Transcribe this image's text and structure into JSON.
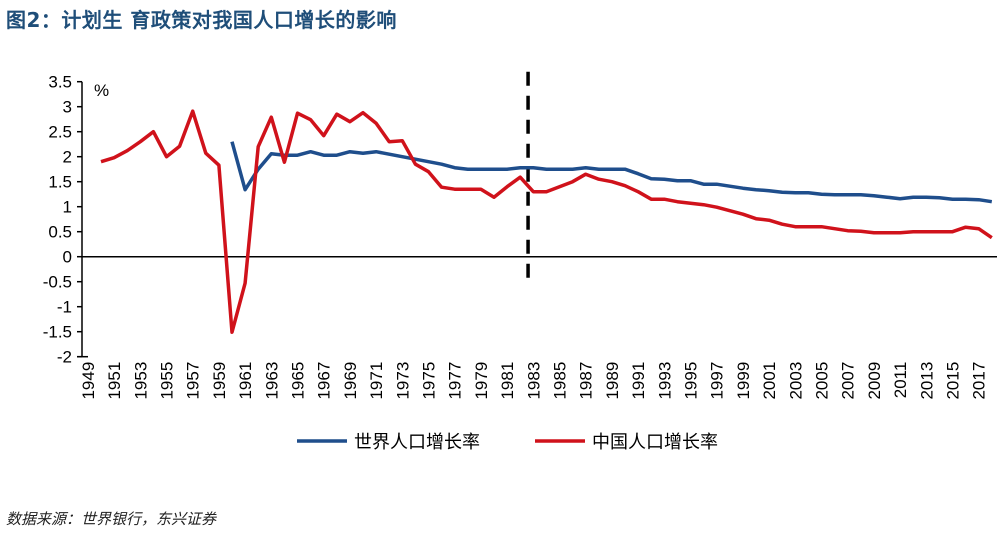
{
  "title": "图2：计划生 育政策对我国人口增长的影响",
  "source": "数据来源：世界银行，东兴证券",
  "chart_data": {
    "type": "line",
    "title": "图2：计划生 育政策对我国人口增长的影响",
    "ylabel": "%",
    "xlabel": "",
    "ylim": [
      -2,
      3.5
    ],
    "yticks": [
      "3.5",
      "3",
      "2.5",
      "2",
      "1.5",
      "1",
      "0.5",
      "0",
      "-0.5",
      "-1",
      "-1.5",
      "-2"
    ],
    "xlim": [
      1949,
      2018
    ],
    "xticks": [
      "1949",
      "1951",
      "1953",
      "1955",
      "1957",
      "1959",
      "1961",
      "1963",
      "1965",
      "1967",
      "1969",
      "1971",
      "1973",
      "1975",
      "1977",
      "1979",
      "1981",
      "1983",
      "1985",
      "1987",
      "1989",
      "1991",
      "1993",
      "1995",
      "1997",
      "1999",
      "2001",
      "2003",
      "2005",
      "2007",
      "2009",
      "2011",
      "2013",
      "2015",
      "2017"
    ],
    "grid": false,
    "legend_position": "bottom",
    "annotations": [
      {
        "type": "vertical-dashed-line",
        "x": 1982.6,
        "y_range": [
          -0.55,
          3.7
        ]
      }
    ],
    "series": [
      {
        "name": "世界人口增长率",
        "color": "#1f4e8c",
        "x_start": 1960,
        "values": [
          2.3,
          1.34,
          1.75,
          2.06,
          2.03,
          2.03,
          2.1,
          2.03,
          2.03,
          2.1,
          2.07,
          2.1,
          2.05,
          2.0,
          1.95,
          1.9,
          1.85,
          1.78,
          1.75,
          1.75,
          1.75,
          1.75,
          1.78,
          1.78,
          1.75,
          1.75,
          1.75,
          1.78,
          1.75,
          1.75,
          1.75,
          1.66,
          1.56,
          1.55,
          1.52,
          1.52,
          1.45,
          1.45,
          1.41,
          1.37,
          1.34,
          1.32,
          1.29,
          1.28,
          1.28,
          1.25,
          1.24,
          1.24,
          1.24,
          1.22,
          1.19,
          1.16,
          1.19,
          1.19,
          1.18,
          1.15,
          1.15,
          1.14,
          1.1
        ]
      },
      {
        "name": "中国人口增长率",
        "color": "#d0121b",
        "x_start": 1950,
        "values": [
          1.9,
          1.98,
          2.12,
          2.3,
          2.5,
          2.0,
          2.21,
          2.91,
          2.07,
          1.83,
          -1.51,
          -0.53,
          2.2,
          2.79,
          1.89,
          2.87,
          2.74,
          2.42,
          2.85,
          2.7,
          2.88,
          2.67,
          2.3,
          2.32,
          1.85,
          1.7,
          1.39,
          1.35,
          1.35,
          1.35,
          1.19,
          1.4,
          1.59,
          1.3,
          1.3,
          1.4,
          1.5,
          1.65,
          1.55,
          1.5,
          1.42,
          1.3,
          1.15,
          1.15,
          1.1,
          1.07,
          1.04,
          0.99,
          0.92,
          0.85,
          0.76,
          0.73,
          0.65,
          0.6,
          0.6,
          0.6,
          0.56,
          0.52,
          0.51,
          0.48,
          0.48,
          0.48,
          0.5,
          0.5,
          0.5,
          0.5,
          0.59,
          0.56,
          0.38
        ]
      }
    ]
  }
}
